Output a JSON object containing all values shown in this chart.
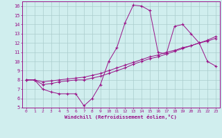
{
  "xlabel": "Windchill (Refroidissement éolien,°C)",
  "bg_color": "#d0eeee",
  "line_color": "#991188",
  "grid_color": "#aacccc",
  "xlim": [
    -0.5,
    23.5
  ],
  "ylim": [
    5,
    16.5
  ],
  "xticks": [
    0,
    1,
    2,
    3,
    4,
    5,
    6,
    7,
    8,
    9,
    10,
    11,
    12,
    13,
    14,
    15,
    16,
    17,
    18,
    19,
    20,
    21,
    22,
    23
  ],
  "yticks": [
    5,
    6,
    7,
    8,
    9,
    10,
    11,
    12,
    13,
    14,
    15,
    16
  ],
  "curve1_x": [
    0,
    1,
    2,
    3,
    4,
    5,
    6,
    7,
    8,
    9,
    10,
    11,
    12,
    13,
    14,
    15,
    16,
    17,
    18,
    19,
    20,
    21,
    22,
    23
  ],
  "curve1_y": [
    8,
    8,
    7,
    6.7,
    6.5,
    6.5,
    6.5,
    5.2,
    6.0,
    7.5,
    10.0,
    11.5,
    14.2,
    16.1,
    16.0,
    15.5,
    11.0,
    10.8,
    13.8,
    14.0,
    13.0,
    12.0,
    10.0,
    9.5
  ],
  "curve2_x": [
    0,
    1,
    2,
    3,
    4,
    5,
    6,
    7,
    8,
    9,
    10,
    11,
    12,
    13,
    14,
    15,
    16,
    17,
    18,
    19,
    20,
    21,
    22,
    23
  ],
  "curve2_y": [
    8.0,
    8.0,
    7.8,
    7.9,
    8.0,
    8.1,
    8.2,
    8.3,
    8.5,
    8.7,
    9.0,
    9.3,
    9.6,
    9.9,
    10.2,
    10.5,
    10.7,
    11.0,
    11.2,
    11.5,
    11.7,
    12.0,
    12.2,
    12.5
  ],
  "curve3_x": [
    0,
    1,
    2,
    3,
    4,
    5,
    6,
    7,
    8,
    9,
    10,
    11,
    12,
    13,
    14,
    15,
    16,
    17,
    18,
    19,
    20,
    21,
    22,
    23
  ],
  "curve3_y": [
    8.0,
    8.0,
    7.5,
    7.6,
    7.8,
    7.9,
    8.0,
    8.0,
    8.2,
    8.4,
    8.7,
    9.0,
    9.3,
    9.7,
    10.0,
    10.3,
    10.5,
    10.8,
    11.1,
    11.4,
    11.7,
    12.0,
    12.3,
    12.7
  ]
}
